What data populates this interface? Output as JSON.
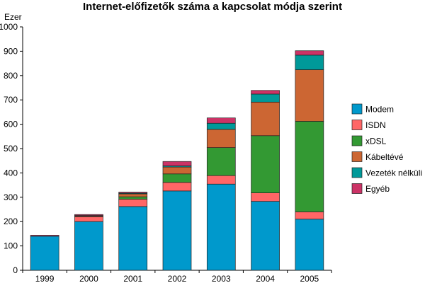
{
  "chart_data": {
    "type": "bar",
    "stacked": true,
    "title": "Internet-előfizetők száma a kapcsolat módja szerint",
    "ylabel": "Ezer",
    "xlabel": "",
    "ylim": [
      0,
      1000
    ],
    "yticks": [
      0,
      100,
      200,
      300,
      400,
      500,
      600,
      700,
      800,
      900,
      1000
    ],
    "grid": false,
    "legend_position": "right",
    "categories": [
      "1999",
      "2000",
      "2001",
      "2002",
      "2003",
      "2004",
      "2005"
    ],
    "series": [
      {
        "name": "Modem",
        "color": "#0099cc",
        "values": [
          140,
          200,
          262,
          326,
          354,
          283,
          210
        ]
      },
      {
        "name": "ISDN",
        "color": "#ff6666",
        "values": [
          0,
          20,
          30,
          35,
          35,
          35,
          30
        ]
      },
      {
        "name": "xDSL",
        "color": "#339933",
        "values": [
          0,
          2,
          10,
          35,
          115,
          235,
          372
        ]
      },
      {
        "name": "Kábeltévé",
        "color": "#cc6633",
        "values": [
          0,
          3,
          12,
          28,
          75,
          138,
          212
        ]
      },
      {
        "name": "Vezeték nélküli",
        "color": "#009999",
        "values": [
          0,
          0,
          3,
          5,
          25,
          33,
          60
        ]
      },
      {
        "name": "Egyéb",
        "color": "#cc3366",
        "values": [
          4,
          4,
          4,
          18,
          22,
          15,
          18
        ]
      }
    ]
  }
}
